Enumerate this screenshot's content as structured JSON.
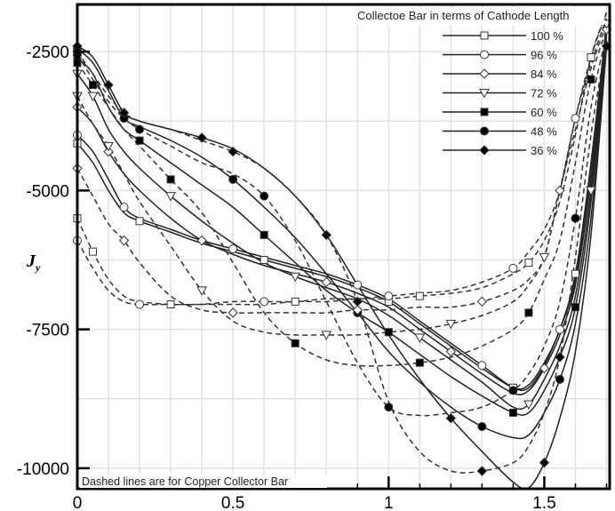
{
  "chart_data": {
    "type": "line",
    "title": "",
    "xlabel": "",
    "ylabel": "J",
    "ylabel_subscript": "y",
    "xlim": [
      0,
      1.71
    ],
    "ylim": [
      -10370,
      -1650
    ],
    "xticks": [
      0,
      0.5,
      1,
      1.5
    ],
    "xtick_labels": [
      "0",
      "0.5",
      "1",
      "1.5"
    ],
    "yticks": [
      -2500,
      -5000,
      -7500,
      -10000
    ],
    "ytick_labels": [
      "-2500",
      "-5000",
      "-7500",
      "-10000"
    ],
    "grid": true,
    "legend": {
      "title": "Collectoe Bar in terms of Cathode Length",
      "placement": "top-right",
      "entries": [
        "100 %",
        "96  %",
        "84  %",
        "72  %",
        "60  %",
        "48  %",
        "36  %"
      ]
    },
    "annotation": "Dashed lines are for Copper Collector Bar",
    "x": [
      0,
      0.05,
      0.1,
      0.15,
      0.2,
      0.3,
      0.4,
      0.5,
      0.6,
      0.7,
      0.8,
      0.9,
      1.0,
      1.1,
      1.2,
      1.3,
      1.4,
      1.45,
      1.5,
      1.55,
      1.6,
      1.65,
      1.7
    ],
    "series": [
      {
        "name": "100 % (solid)",
        "style": "solid",
        "marker": "square-open",
        "values": [
          -4150,
          -4500,
          -5000,
          -5400,
          -5550,
          -5750,
          -5950,
          -6100,
          -6250,
          -6400,
          -6550,
          -6750,
          -7000,
          -7400,
          -7800,
          -8200,
          -8550,
          -8500,
          -8100,
          -7500,
          -6500,
          -4500,
          -2000
        ]
      },
      {
        "name": "96 % (solid)",
        "style": "solid",
        "marker": "circle-open",
        "values": [
          -4000,
          -4300,
          -4800,
          -5300,
          -5500,
          -5700,
          -5900,
          -6050,
          -6200,
          -6350,
          -6500,
          -6700,
          -6950,
          -7350,
          -7750,
          -8150,
          -8550,
          -8550,
          -8150,
          -7500,
          -6600,
          -4600,
          -2000
        ]
      },
      {
        "name": "84 % (solid)",
        "style": "solid",
        "marker": "diamond-open",
        "values": [
          -3500,
          -3800,
          -4300,
          -4700,
          -5000,
          -5500,
          -5900,
          -6150,
          -6350,
          -6500,
          -6650,
          -6850,
          -7100,
          -7500,
          -7900,
          -8300,
          -8650,
          -8600,
          -8200,
          -7600,
          -6700,
          -4800,
          -2100
        ]
      },
      {
        "name": "72 % (solid)",
        "style": "solid",
        "marker": "triangle-down-open",
        "values": [
          -2900,
          -3300,
          -3900,
          -4300,
          -4600,
          -5100,
          -5550,
          -5950,
          -6300,
          -6550,
          -6750,
          -6950,
          -7250,
          -7650,
          -8050,
          -8450,
          -8900,
          -8850,
          -8400,
          -7800,
          -6900,
          -5000,
          -2100
        ]
      },
      {
        "name": "60 % (solid)",
        "style": "solid",
        "marker": "square-filled",
        "values": [
          -2600,
          -2900,
          -3500,
          -3900,
          -4100,
          -4500,
          -4900,
          -5300,
          -5800,
          -6300,
          -6800,
          -7200,
          -7550,
          -7950,
          -8350,
          -8700,
          -9000,
          -9000,
          -8600,
          -8000,
          -7100,
          -5200,
          -2200
        ]
      },
      {
        "name": "48 % (solid)",
        "style": "solid",
        "marker": "circle-filled",
        "values": [
          -2450,
          -2700,
          -3200,
          -3700,
          -3850,
          -4100,
          -4400,
          -4800,
          -5300,
          -5850,
          -6500,
          -7200,
          -7900,
          -8450,
          -8900,
          -9250,
          -9450,
          -9400,
          -9000,
          -8400,
          -7400,
          -5500,
          -2300
        ]
      },
      {
        "name": "36 % (solid)",
        "style": "solid",
        "marker": "diamond-filled",
        "values": [
          -2400,
          -2600,
          -3100,
          -3600,
          -3750,
          -3900,
          -4050,
          -4250,
          -4600,
          -5100,
          -5800,
          -6700,
          -7600,
          -8400,
          -9100,
          -9700,
          -10250,
          -10350,
          -9900,
          -9100,
          -7900,
          -5800,
          -2400
        ]
      },
      {
        "name": "100 % (copper, dashed)",
        "style": "dashed",
        "marker": "square-open",
        "values": [
          -5500,
          -6100,
          -6600,
          -6900,
          -7000,
          -7050,
          -7050,
          -7050,
          -7050,
          -7000,
          -7000,
          -6950,
          -6950,
          -6900,
          -6850,
          -6750,
          -6500,
          -6300,
          -5900,
          -5200,
          -4000,
          -2600,
          -1800
        ]
      },
      {
        "name": "96 % (copper, dashed)",
        "style": "dashed",
        "marker": "circle-open",
        "values": [
          -5900,
          -6400,
          -6800,
          -7000,
          -7050,
          -7050,
          -7050,
          -7000,
          -7000,
          -7000,
          -6950,
          -6950,
          -6900,
          -6850,
          -6800,
          -6650,
          -6400,
          -6100,
          -5700,
          -5000,
          -3700,
          -2600,
          -1800
        ]
      },
      {
        "name": "84 % (copper, dashed)",
        "style": "dashed",
        "marker": "diamond-open",
        "values": [
          -4600,
          -5100,
          -5600,
          -5900,
          -6300,
          -6900,
          -7150,
          -7200,
          -7200,
          -7200,
          -7200,
          -7150,
          -7150,
          -7100,
          -7100,
          -7000,
          -6800,
          -6600,
          -6200,
          -5000,
          -3700,
          -2700,
          -1900
        ]
      },
      {
        "name": "72 % (copper, dashed)",
        "style": "dashed",
        "marker": "triangle-down-open",
        "values": [
          -3300,
          -3800,
          -4200,
          -4700,
          -5200,
          -6000,
          -6800,
          -7350,
          -7550,
          -7600,
          -7600,
          -7600,
          -7550,
          -7500,
          -7400,
          -7250,
          -7000,
          -6700,
          -6200,
          -5000,
          -3900,
          -2800,
          -2000
        ]
      },
      {
        "name": "60 % (copper, dashed)",
        "style": "dashed",
        "marker": "square-filled",
        "values": [
          -2700,
          -3100,
          -3500,
          -3900,
          -4200,
          -4800,
          -5400,
          -6300,
          -7200,
          -7750,
          -8050,
          -8150,
          -8150,
          -8100,
          -8000,
          -7800,
          -7500,
          -7200,
          -6600,
          -5900,
          -4500,
          -3000,
          -2100
        ]
      },
      {
        "name": "48 % (copper, dashed)",
        "style": "dashed",
        "marker": "circle-filled",
        "values": [
          -2550,
          -3000,
          -3400,
          -3700,
          -3900,
          -4200,
          -4500,
          -4700,
          -5100,
          -5900,
          -7000,
          -8100,
          -8900,
          -9050,
          -9000,
          -8900,
          -8600,
          -8300,
          -7800,
          -7000,
          -5500,
          -3500,
          -2200
        ]
      },
      {
        "name": "36 % (copper, dashed)",
        "style": "dashed",
        "marker": "diamond-filled",
        "values": [
          -2500,
          -2900,
          -3300,
          -3600,
          -3750,
          -3900,
          -4100,
          -4300,
          -4600,
          -5100,
          -5800,
          -7000,
          -8800,
          -9700,
          -10050,
          -10050,
          -9900,
          -9600,
          -9000,
          -8000,
          -6200,
          -4000,
          -2300
        ]
      }
    ]
  }
}
